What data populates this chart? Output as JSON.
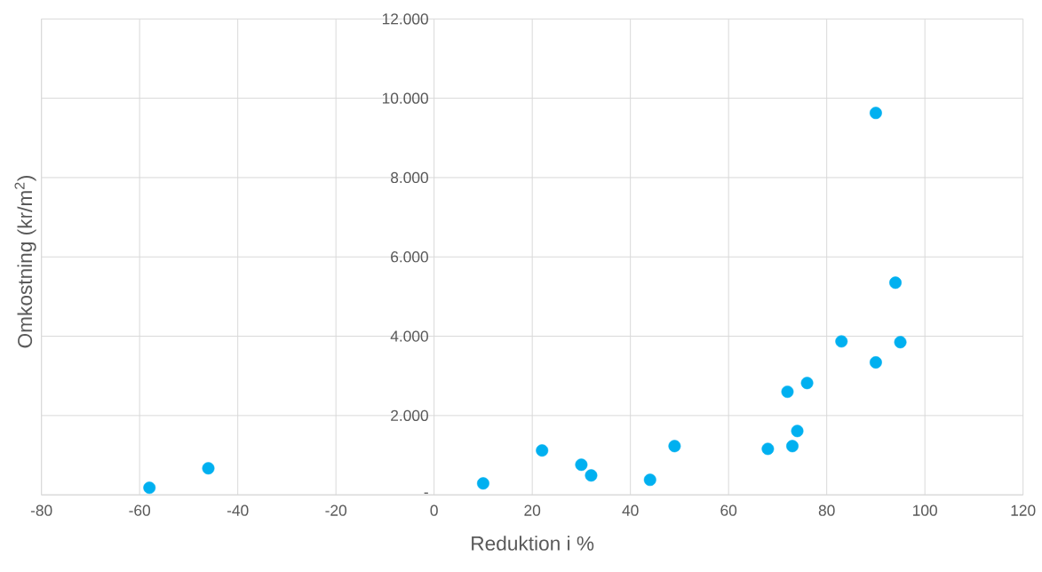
{
  "chart_data": {
    "type": "scatter",
    "xlabel": "Reduktion i %",
    "ylabel": "Omkostning (kr/m$^{2}$)",
    "x": [
      -58,
      -46,
      10,
      22,
      30,
      32,
      44,
      49,
      68,
      73,
      74,
      72,
      76,
      83,
      90,
      90,
      94,
      95
    ],
    "series": [
      {
        "color": "#00b0f0",
        "values": [
          180,
          670,
          290,
          1120,
          760,
          490,
          380,
          1230,
          1160,
          1230,
          1610,
          2600,
          2820,
          3870,
          3340,
          9630,
          5350,
          3850
        ]
      }
    ],
    "xlim": [
      -80,
      120
    ],
    "xticks": [
      -80,
      -60,
      -40,
      -20,
      0,
      20,
      40,
      60,
      80,
      100,
      120
    ],
    "ylim": [
      0,
      12000
    ],
    "yticks": [
      {
        "value": 0,
        "label": "-"
      },
      {
        "value": 2000,
        "label": "2.000"
      },
      {
        "value": 4000,
        "label": "4.000"
      },
      {
        "value": 6000,
        "label": "6.000"
      },
      {
        "value": 8000,
        "label": "8.000"
      },
      {
        "value": 10000,
        "label": "10.000"
      },
      {
        "value": 12000,
        "label": "12.000"
      }
    ],
    "grid": true,
    "marker": "circle"
  }
}
